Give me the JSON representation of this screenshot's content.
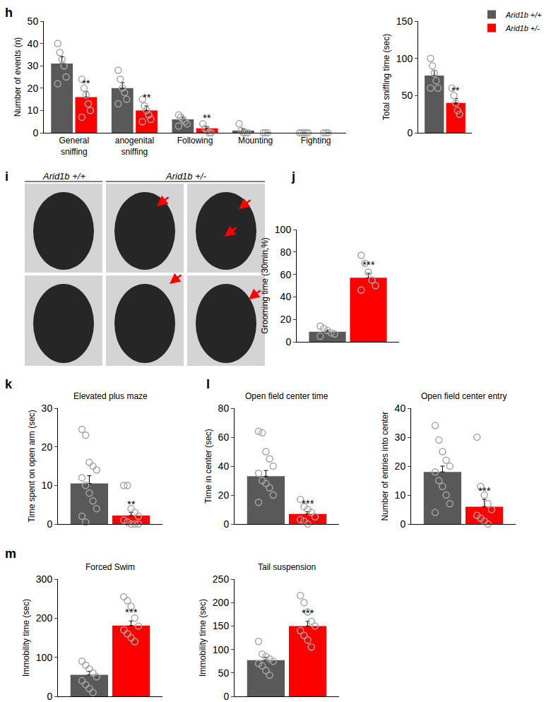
{
  "chart_data": [
    {
      "type": "bar",
      "panel_label": "h",
      "y_label": "Number of events (n)",
      "categories": [
        "General sniffing",
        "anogenital sniffing",
        "Following",
        "Mounting",
        "Fighting"
      ],
      "ylim": [
        0,
        50
      ],
      "yticks": [
        0,
        10,
        20,
        30,
        40,
        50
      ],
      "legend": "top right",
      "series": [
        {
          "name": "Arid1b +/+",
          "color": "#595959",
          "values": [
            31,
            20,
            6,
            1,
            0
          ],
          "errors": [
            3,
            2.5,
            1,
            0.8,
            0
          ],
          "points": [
            [
              40,
              36,
              33,
              30,
              25,
              22
            ],
            [
              28,
              24,
              20,
              18,
              15,
              13
            ],
            [
              8,
              7,
              6,
              5,
              4,
              3
            ],
            [
              4,
              1,
              0,
              0,
              0
            ],
            [
              0,
              0,
              0,
              0,
              0
            ]
          ]
        },
        {
          "name": "Arid1b +/-",
          "color": "#ff0000",
          "values": [
            16,
            10,
            2,
            0,
            0
          ],
          "errors": [
            2.5,
            2,
            0.7,
            0,
            0
          ],
          "points": [
            [
              24,
              20,
              17,
              13,
              10,
              7
            ],
            [
              15,
              12,
              10,
              8,
              6,
              5
            ],
            [
              4,
              2,
              1,
              0,
              0
            ],
            [
              0,
              0,
              0
            ],
            [
              0,
              0,
              0
            ]
          ]
        }
      ],
      "annotations": [
        {
          "category_index": 0,
          "series": "Arid1b +/-",
          "text": "**"
        },
        {
          "category_index": 1,
          "series": "Arid1b +/-",
          "text": "**"
        },
        {
          "category_index": 2,
          "series": "Arid1b +/-",
          "text": "**"
        }
      ]
    },
    {
      "type": "bar",
      "y_label": "Total sniffing time (sec)",
      "categories": [
        null
      ],
      "ylim": [
        0,
        150
      ],
      "yticks": [
        0,
        50,
        100,
        150
      ],
      "series": [
        {
          "name": "Arid1b +/+",
          "color": "#595959",
          "values": [
            77
          ],
          "errors": [
            7
          ],
          "points": [
            [
              100,
              90,
              80,
              70,
              60,
              60
            ]
          ]
        },
        {
          "name": "Arid1b +/-",
          "color": "#ff0000",
          "values": [
            40
          ],
          "errors": [
            6
          ],
          "points": [
            [
              60,
              50,
              40,
              30,
              25
            ]
          ]
        }
      ],
      "annotations": [
        {
          "category_index": 0,
          "series": "Arid1b +/-",
          "text": "**"
        }
      ]
    },
    {
      "type": "image",
      "panel_label": "i",
      "headings": [
        "Arid1b +/+",
        "Arid1b +/-"
      ]
    },
    {
      "type": "bar",
      "panel_label": "j",
      "y_label": "Grooming time (30min,%)",
      "categories": [
        null
      ],
      "ylim": [
        0,
        100
      ],
      "yticks": [
        0,
        20,
        40,
        60,
        80,
        100
      ],
      "series": [
        {
          "name": "Arid1b +/+",
          "color": "#595959",
          "values": [
            9
          ],
          "errors": [
            1.5
          ],
          "points": [
            [
              14,
              12,
              10,
              8,
              7,
              5
            ]
          ]
        },
        {
          "name": "Arid1b +/-",
          "color": "#ff0000",
          "values": [
            57
          ],
          "errors": [
            4
          ],
          "points": [
            [
              77,
              70,
              62,
              55,
              50,
              46
            ]
          ]
        }
      ],
      "annotations": [
        {
          "category_index": 0,
          "series": "Arid1b +/-",
          "text": "***"
        }
      ]
    },
    {
      "type": "bar",
      "panel_label": "k",
      "title": "Elevated plus maze",
      "y_label": "Time spent on open arm (sec)",
      "categories": [
        null
      ],
      "ylim": [
        0,
        30
      ],
      "yticks": [
        0,
        10,
        20,
        30
      ],
      "series": [
        {
          "name": "Arid1b +/+",
          "color": "#595959",
          "values": [
            10.5
          ],
          "errors": [
            2
          ],
          "points": [
            [
              24.5,
              23,
              16,
              15,
              14,
              12,
              10,
              8,
              6,
              4,
              2,
              0.5
            ]
          ]
        },
        {
          "name": "Arid1b +/-",
          "color": "#ff0000",
          "values": [
            2.2
          ],
          "errors": [
            0.8
          ],
          "points": [
            [
              10,
              10,
              4,
              3,
              2,
              1,
              0.5,
              0,
              0,
              0
            ]
          ]
        }
      ],
      "annotations": [
        {
          "category_index": 0,
          "series": "Arid1b +/-",
          "text": "**"
        }
      ]
    },
    {
      "type": "bar",
      "panel_label": "l",
      "title": "Open field center time",
      "y_label": "Time in center (sec)",
      "categories": [
        null
      ],
      "ylim": [
        0,
        80
      ],
      "yticks": [
        0,
        20,
        40,
        60,
        80
      ],
      "series": [
        {
          "name": "Arid1b +/+",
          "color": "#595959",
          "values": [
            33
          ],
          "errors": [
            4
          ],
          "points": [
            [
              64,
              63,
              50,
              45,
              40,
              35,
              30,
              28,
              25,
              20,
              15
            ]
          ]
        },
        {
          "name": "Arid1b +/-",
          "color": "#ff0000",
          "values": [
            7
          ],
          "errors": [
            1.5
          ],
          "points": [
            [
              17,
              12,
              10,
              8,
              5,
              3,
              2,
              0
            ]
          ]
        }
      ],
      "annotations": [
        {
          "category_index": 0,
          "series": "Arid1b +/-",
          "text": "***"
        }
      ]
    },
    {
      "type": "bar",
      "title": "Open field center entry",
      "y_label": "Number of entries into center",
      "categories": [
        null
      ],
      "ylim": [
        0,
        40
      ],
      "yticks": [
        0,
        10,
        20,
        30,
        40
      ],
      "series": [
        {
          "name": "Arid1b +/+",
          "color": "#595959",
          "values": [
            18
          ],
          "errors": [
            2
          ],
          "points": [
            [
              34,
              29,
              25,
              22,
              20,
              18,
              15,
              13,
              10,
              7,
              4
            ]
          ]
        },
        {
          "name": "Arid1b +/-",
          "color": "#ff0000",
          "values": [
            6
          ],
          "errors": [
            2.5
          ],
          "points": [
            [
              30,
              13,
              10,
              7,
              5,
              3,
              2,
              1,
              0
            ]
          ]
        }
      ],
      "annotations": [
        {
          "category_index": 0,
          "series": "Arid1b +/-",
          "text": "***"
        }
      ]
    },
    {
      "type": "bar",
      "panel_label": "m",
      "title": "Forced Swim",
      "y_label": "Immobility time (sec)",
      "categories": [
        null
      ],
      "ylim": [
        0,
        300
      ],
      "yticks": [
        0,
        100,
        200,
        300
      ],
      "series": [
        {
          "name": "Arid1b +/+",
          "color": "#595959",
          "values": [
            55
          ],
          "errors": [
            9
          ],
          "points": [
            [
              90,
              80,
              70,
              60,
              50,
              40,
              30,
              20,
              10
            ]
          ]
        },
        {
          "name": "Arid1b +/-",
          "color": "#ff0000",
          "values": [
            181
          ],
          "errors": [
            12
          ],
          "points": [
            [
              255,
              245,
              230,
              200,
              180,
              170,
              160,
              150,
              140
            ]
          ]
        }
      ],
      "annotations": [
        {
          "category_index": 0,
          "series": "Arid1b +/-",
          "text": "***"
        }
      ]
    },
    {
      "type": "bar",
      "title": "Tail suspension",
      "y_label": "Immobility time (sec)",
      "categories": [
        null
      ],
      "ylim": [
        0,
        250
      ],
      "yticks": [
        0,
        50,
        100,
        150,
        200,
        250
      ],
      "series": [
        {
          "name": "Arid1b +/+",
          "color": "#595959",
          "values": [
            77
          ],
          "errors": [
            6
          ],
          "points": [
            [
              117,
              90,
              85,
              80,
              75,
              70,
              65,
              55,
              45
            ]
          ]
        },
        {
          "name": "Arid1b +/-",
          "color": "#ff0000",
          "values": [
            150
          ],
          "errors": [
            10
          ],
          "points": [
            [
              215,
              200,
              180,
              160,
              150,
              140,
              130,
              120,
              105
            ]
          ]
        }
      ],
      "annotations": [
        {
          "category_index": 0,
          "series": "Arid1b +/-",
          "text": "***"
        }
      ]
    }
  ]
}
